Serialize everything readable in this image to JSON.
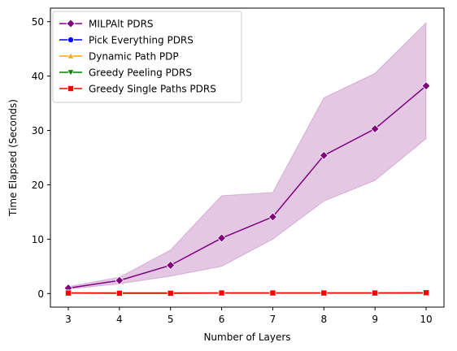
{
  "chart_data": {
    "type": "line",
    "title": "",
    "xlabel": "Number of Layers",
    "ylabel": "Time Elapsed (Seconds)",
    "x": [
      3,
      4,
      5,
      6,
      7,
      8,
      9,
      10
    ],
    "xlim": [
      2.65,
      10.35
    ],
    "ylim": [
      -2.5,
      52.5
    ],
    "xticks": [
      "3",
      "4",
      "5",
      "6",
      "7",
      "8",
      "9",
      "10"
    ],
    "yticks": [
      0,
      10,
      20,
      30,
      40,
      50
    ],
    "yticklabels": [
      "0",
      "10",
      "20",
      "30",
      "40",
      "50"
    ],
    "grid": false,
    "legend_position": "top-left",
    "series": [
      {
        "name": "MILPAlt PDRS",
        "color": "#800080",
        "marker": "diamond",
        "values": [
          1.0,
          2.4,
          5.2,
          10.2,
          14.1,
          25.4,
          30.3,
          38.2
        ],
        "band_lower": [
          0.8,
          1.8,
          3.2,
          5.0,
          10.0,
          17.0,
          20.8,
          28.5
        ],
        "band_upper": [
          1.3,
          3.0,
          8.0,
          18.0,
          18.6,
          36.0,
          40.5,
          49.8
        ]
      },
      {
        "name": "Pick Everything PDRS",
        "color": "#0000ff",
        "marker": "circle",
        "values": [
          0.1,
          0.1,
          0.1,
          0.1,
          0.1,
          0.1,
          0.1,
          0.1
        ]
      },
      {
        "name": "Dynamic Path PDP",
        "color": "#ffa500",
        "marker": "triangle-up",
        "values": [
          0.1,
          0.1,
          0.1,
          0.1,
          0.1,
          0.1,
          0.1,
          0.1
        ]
      },
      {
        "name": "Greedy Peeling PDRS",
        "color": "#008000",
        "marker": "triangle-down",
        "values": [
          0.1,
          0.1,
          0.1,
          0.1,
          0.1,
          0.1,
          0.1,
          0.1
        ]
      },
      {
        "name": "Greedy Single Paths PDRS",
        "color": "#ff0000",
        "marker": "square",
        "values": [
          0.1,
          0.05,
          0.05,
          0.1,
          0.1,
          0.1,
          0.1,
          0.15
        ]
      }
    ]
  }
}
